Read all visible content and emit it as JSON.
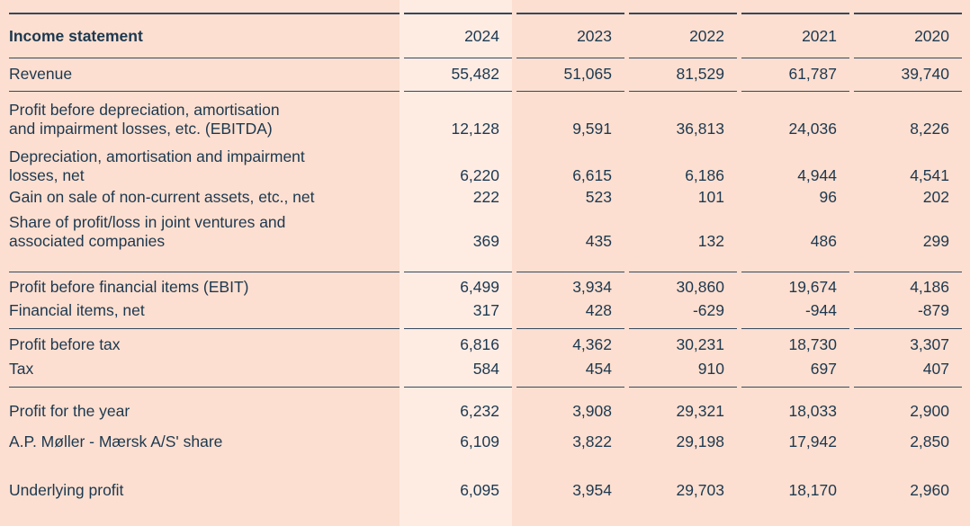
{
  "chart_data": {
    "type": "table",
    "title": "Income statement",
    "years": [
      "2024",
      "2023",
      "2022",
      "2021",
      "2020"
    ],
    "highlight_year": "2024",
    "rows": [
      {
        "label": "Revenue",
        "values": [
          "55,482",
          "51,065",
          "81,529",
          "61,787",
          "39,740"
        ]
      },
      {
        "label": "Profit before depreciation, amortisation\nand impairment losses, etc. (EBITDA)",
        "values": [
          "12,128",
          "9,591",
          "36,813",
          "24,036",
          "8,226"
        ]
      },
      {
        "label": "Depreciation, amortisation and impairment\nlosses, net",
        "values": [
          "6,220",
          "6,615",
          "6,186",
          "4,944",
          "4,541"
        ]
      },
      {
        "label": "Gain on sale of non-current assets, etc., net",
        "values": [
          "222",
          "523",
          "101",
          "96",
          "202"
        ]
      },
      {
        "label": "Share of profit/loss in joint ventures and\nassociated companies",
        "values": [
          "369",
          "435",
          "132",
          "486",
          "299"
        ]
      },
      {
        "label": "Profit before financial items (EBIT)",
        "values": [
          "6,499",
          "3,934",
          "30,860",
          "19,674",
          "4,186"
        ]
      },
      {
        "label": "Financial items, net",
        "values": [
          "317",
          "428",
          "-629",
          "-944",
          "-879"
        ]
      },
      {
        "label": "Profit before tax",
        "values": [
          "6,816",
          "4,362",
          "30,231",
          "18,730",
          "3,307"
        ]
      },
      {
        "label": "Tax",
        "values": [
          "584",
          "454",
          "910",
          "697",
          "407"
        ]
      },
      {
        "label": "Profit for the year",
        "values": [
          "6,232",
          "3,908",
          "29,321",
          "18,033",
          "2,900"
        ]
      },
      {
        "label": "A.P. Møller - Mærsk A/S' share",
        "values": [
          "6,109",
          "3,822",
          "29,198",
          "17,942",
          "2,850"
        ]
      },
      {
        "label": "Underlying profit",
        "values": [
          "6,095",
          "3,954",
          "29,703",
          "18,170",
          "2,960"
        ]
      }
    ],
    "colors": {
      "background": "#fcdfd0",
      "highlight_column": "#feece3",
      "text": "#1c3850",
      "rule": "#35495e"
    }
  }
}
